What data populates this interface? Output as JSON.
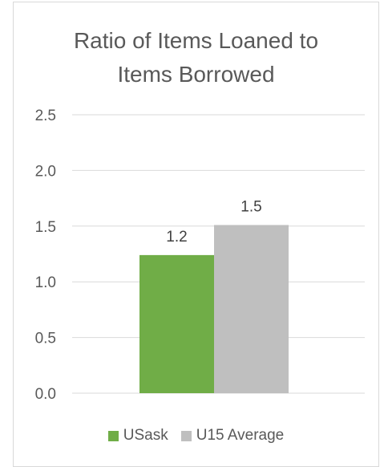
{
  "chart_data": {
    "type": "bar",
    "title_lines": [
      "Ratio of Items Loaned to",
      "Items Borrowed"
    ],
    "categories": [
      ""
    ],
    "series": [
      {
        "name": "USask",
        "values": [
          1.24
        ],
        "label": "1.2",
        "color": "#70ad47"
      },
      {
        "name": "U15 Average",
        "values": [
          1.51
        ],
        "label": "1.5",
        "color": "#bfbfbf"
      }
    ],
    "y_ticks": [
      "0.0",
      "0.5",
      "1.0",
      "1.5",
      "2.0",
      "2.5"
    ],
    "ylim": [
      0,
      2.5
    ],
    "grid": true,
    "legend_position": "bottom"
  }
}
